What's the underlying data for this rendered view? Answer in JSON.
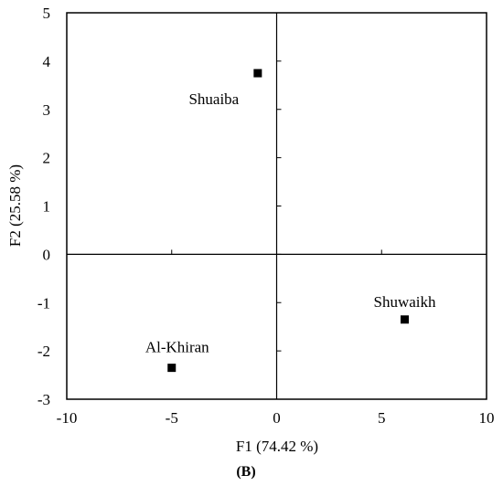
{
  "chart_data": {
    "type": "scatter",
    "title": "",
    "xlabel": "F1 (74.42 %)",
    "ylabel": "F2 (25.58 %)",
    "xlim": [
      -10,
      10
    ],
    "ylim": [
      -3,
      5
    ],
    "xticks": [
      -10,
      -5,
      0,
      5,
      10
    ],
    "yticks": [
      -3,
      -2,
      -1,
      0,
      1,
      2,
      3,
      4,
      5
    ],
    "grid": false,
    "marker": "square",
    "points": [
      {
        "label": "Shuaiba",
        "x": -0.9,
        "y": 3.75
      },
      {
        "label": "Shuwaikh",
        "x": 6.1,
        "y": -1.35
      },
      {
        "label": "Al-Khiran",
        "x": -5.0,
        "y": -2.35
      }
    ]
  },
  "panel_label": "(B)"
}
